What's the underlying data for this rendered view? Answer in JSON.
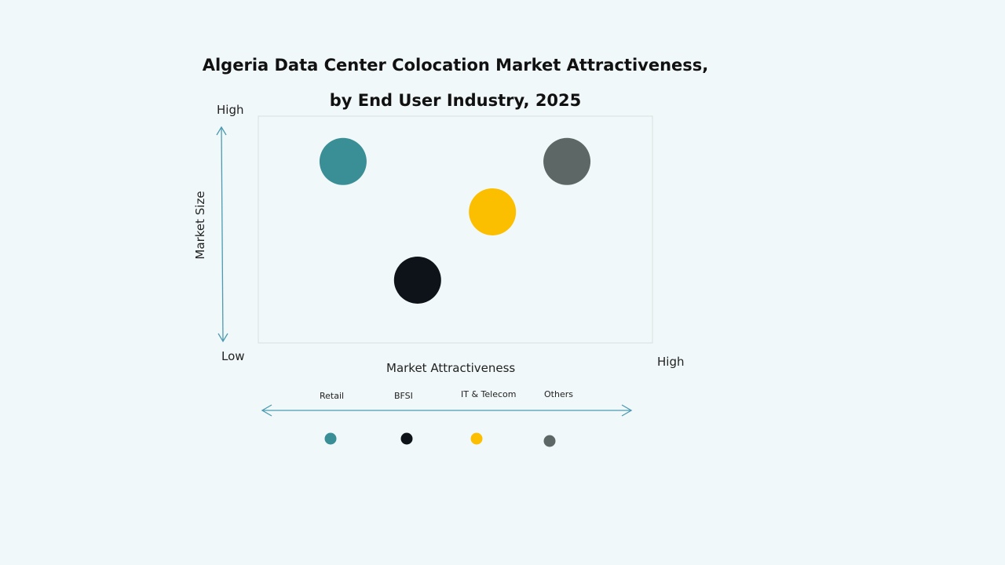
{
  "chart_data": {
    "type": "bubble-matrix",
    "title_line1": "Algeria Data Center Colocation Market Attractiveness,",
    "title_line2": "by End User Industry, 2025",
    "xlabel": "Market Attractiveness",
    "ylabel": "Market Size",
    "x_low": "Low",
    "x_high": "High",
    "y_high": "High",
    "xlim": [
      0,
      100
    ],
    "ylim": [
      0,
      100
    ],
    "grid": false,
    "legend_position": "bottom",
    "series": [
      {
        "name": "Retail",
        "x": 21.5,
        "y": 80,
        "color": "#3a8e96"
      },
      {
        "name": "BFSI",
        "x": 40.4,
        "y": 27.7,
        "color": "#0e131a"
      },
      {
        "name": "IT & Telecom",
        "x": 59.4,
        "y": 57.8,
        "color": "#fbbf00"
      },
      {
        "name": "Others",
        "x": 78.3,
        "y": 80,
        "color": "#5d6866"
      }
    ]
  }
}
